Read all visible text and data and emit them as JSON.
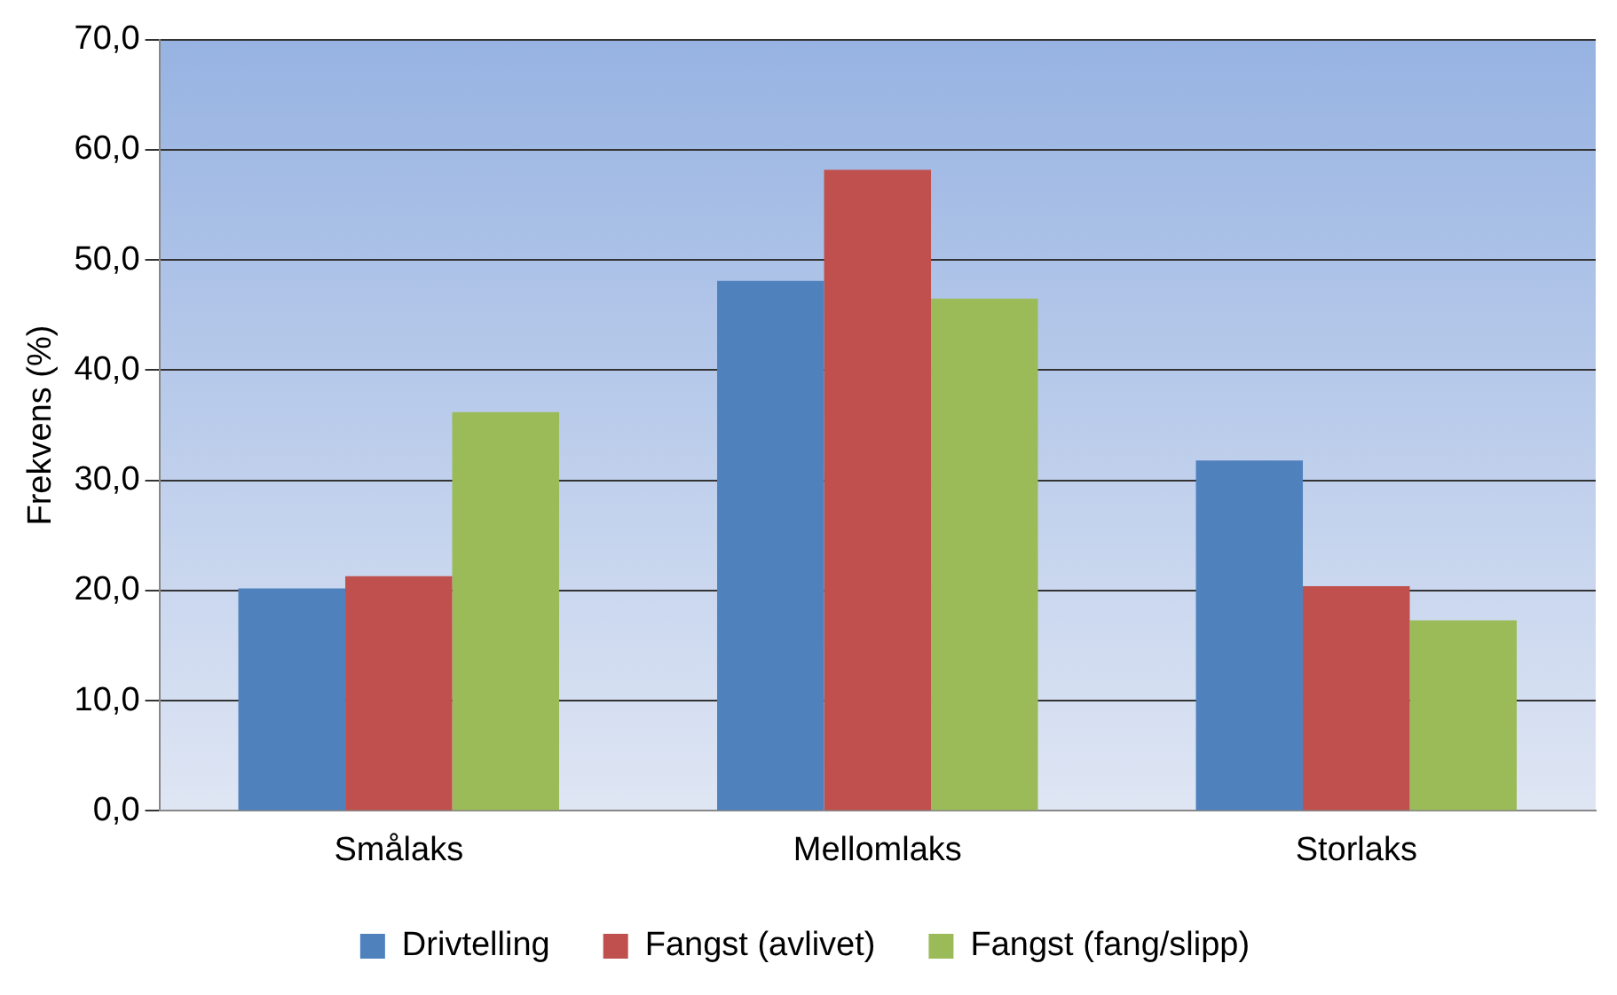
{
  "chart_data": {
    "type": "bar",
    "ylabel": "Frekvens (%)",
    "categories": [
      "Smålaks",
      "Mellomlaks",
      "Storlaks"
    ],
    "series": [
      {
        "name": "Drivtelling",
        "color": "#4f81bd",
        "values": [
          20.2,
          48.1,
          31.8
        ]
      },
      {
        "name": "Fangst (avlivet)",
        "color": "#c0504d",
        "values": [
          21.3,
          58.2,
          20.4
        ]
      },
      {
        "name": "Fangst (fang/slipp)",
        "color": "#9bbb59",
        "values": [
          36.2,
          46.5,
          17.3
        ]
      }
    ],
    "ylim": [
      0,
      70
    ],
    "yticks": [
      {
        "value": 0,
        "label": "0,0"
      },
      {
        "value": 10,
        "label": "10,0"
      },
      {
        "value": 20,
        "label": "20,0"
      },
      {
        "value": 30,
        "label": "30,0"
      },
      {
        "value": 40,
        "label": "40,0"
      },
      {
        "value": 50,
        "label": "50,0"
      },
      {
        "value": 60,
        "label": "60,0"
      },
      {
        "value": 70,
        "label": "70,0"
      }
    ],
    "grid": "y",
    "legend": "bottom"
  }
}
